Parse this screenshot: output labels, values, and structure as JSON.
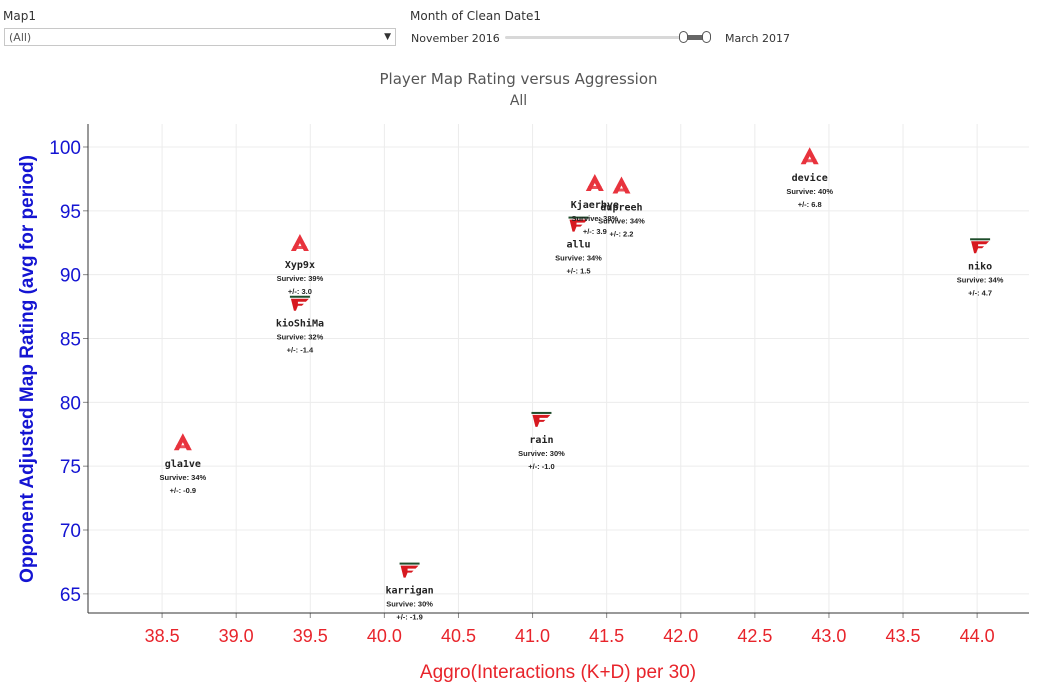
{
  "filters": {
    "map": {
      "label": "Map1",
      "value": "(All)",
      "arrow": "▼"
    },
    "month": {
      "label": "Month of Clean Date1",
      "min_label": "November 2016",
      "max_label": "March 2017"
    }
  },
  "chart_data": {
    "type": "scatter",
    "title": "Player Map Rating versus Aggression",
    "subtitle": "All",
    "xlabel": "Aggro(Interactions (K+D) per 30)",
    "ylabel": "Opponent Adjusted Map Rating (avg for period)",
    "xlim": [
      38.0,
      44.35
    ],
    "ylim": [
      63.5,
      101.8
    ],
    "xticks": [
      "38.5",
      "39.0",
      "39.5",
      "40.0",
      "40.5",
      "41.0",
      "41.5",
      "42.0",
      "42.5",
      "43.0",
      "43.5",
      "44.0"
    ],
    "yticks": [
      "65",
      "70",
      "75",
      "80",
      "85",
      "90",
      "95",
      "100"
    ],
    "grid": true,
    "colors": {
      "axis_text": "#e8242b",
      "y_axis_text": "#1414d2",
      "astralis": "#e8333d",
      "faze": "#d71920"
    },
    "points": [
      {
        "name": "gla1ve",
        "team": "astralis",
        "x": 38.64,
        "y": 76.8,
        "survive": "Survive: 34%",
        "plusminus": "+/-: -0.9"
      },
      {
        "name": "Xyp9x",
        "team": "astralis",
        "x": 39.43,
        "y": 92.4,
        "survive": "Survive: 39%",
        "plusminus": "+/-: 3.0"
      },
      {
        "name": "kioShiMa",
        "team": "faze",
        "x": 39.43,
        "y": 87.8,
        "survive": "Survive: 32%",
        "plusminus": "+/-: -1.4"
      },
      {
        "name": "karrigan",
        "team": "faze",
        "x": 40.17,
        "y": 66.9,
        "survive": "Survive: 30%",
        "plusminus": "+/-: -1.9"
      },
      {
        "name": "rain",
        "team": "faze",
        "x": 41.06,
        "y": 78.7,
        "survive": "Survive: 30%",
        "plusminus": "+/-: -1.0"
      },
      {
        "name": "allu",
        "team": "faze",
        "x": 41.31,
        "y": 94.0,
        "survive": "Survive: 34%",
        "plusminus": "+/-: 1.5"
      },
      {
        "name": "Kjaerbye",
        "team": "astralis",
        "x": 41.42,
        "y": 97.1,
        "survive": "Survive: 38%",
        "plusminus": "+/-: 3.9"
      },
      {
        "name": "dupreeh",
        "team": "astralis",
        "x": 41.6,
        "y": 96.9,
        "survive": "Survive: 34%",
        "plusminus": "+/-: 2.2"
      },
      {
        "name": "device",
        "team": "astralis",
        "x": 42.87,
        "y": 99.2,
        "survive": "Survive: 40%",
        "plusminus": "+/-: 6.8"
      },
      {
        "name": "niko",
        "team": "faze",
        "x": 44.02,
        "y": 92.3,
        "survive": "Survive: 34%",
        "plusminus": "+/-: 4.7"
      }
    ]
  }
}
